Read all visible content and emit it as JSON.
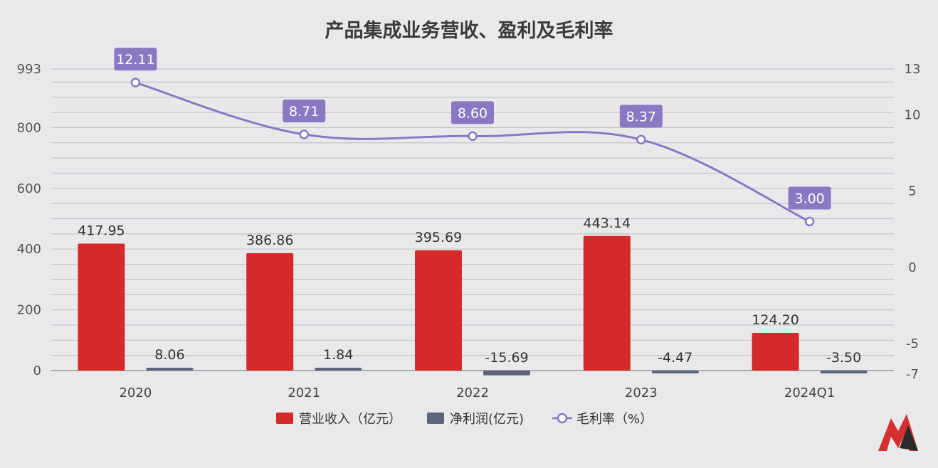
{
  "chart_data": {
    "type": "bar",
    "title": "产品集成业务营收、盈利及毛利率",
    "categories": [
      "2020",
      "2021",
      "2022",
      "2023",
      "2024Q1"
    ],
    "series": [
      {
        "name": "营业收入（亿元）",
        "type": "bar",
        "axis": "left",
        "color": "#d42a2a",
        "values": [
          417.95,
          386.86,
          395.69,
          443.14,
          124.2
        ],
        "labels": [
          "417.95",
          "386.86",
          "395.69",
          "443.14",
          "124.20"
        ]
      },
      {
        "name": "净利润(亿元)",
        "type": "bar",
        "axis": "left",
        "color": "#5f6578",
        "values": [
          8.06,
          1.84,
          -15.69,
          -4.47,
          -3.5
        ],
        "labels": [
          "8.06",
          "1.84",
          "-15.69",
          "-4.47",
          "-3.50"
        ]
      },
      {
        "name": "毛利率（%）",
        "type": "line",
        "axis": "right",
        "color": "#8a78c2",
        "values": [
          12.11,
          8.71,
          8.6,
          8.37,
          3.0
        ],
        "labels": [
          "12.11",
          "8.71",
          "8.60",
          "8.37",
          "3.00"
        ]
      }
    ],
    "y_left": {
      "ticks": [
        "993",
        "800",
        "600",
        "400",
        "200",
        "0"
      ],
      "ylim": [
        0,
        993
      ]
    },
    "y_right": {
      "ticks": [
        "13",
        "10",
        "5",
        "0",
        "-5",
        "-7"
      ],
      "ylim": [
        -7,
        13
      ]
    },
    "grid": true,
    "legend_position": "bottom"
  }
}
